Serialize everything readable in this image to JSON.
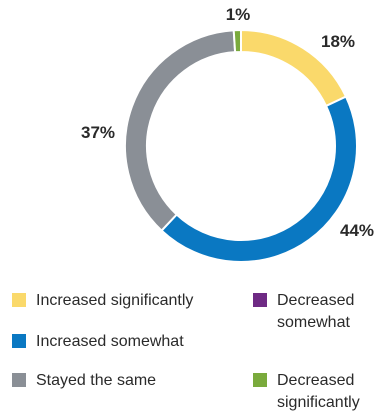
{
  "chart_data": {
    "type": "pie",
    "variant": "donut",
    "title": "",
    "categories": [
      "Increased significantly",
      "Increased somewhat",
      "Stayed the same",
      "Decreased somewhat",
      "Decreased significantly"
    ],
    "values": [
      18,
      44,
      37,
      0,
      1
    ],
    "value_labels": [
      "18%",
      "44%",
      "37%",
      "",
      "1%"
    ],
    "colors": [
      "#FAD96B",
      "#0A78C2",
      "#8A8F96",
      "#6E2A84",
      "#7AAA3C"
    ],
    "slice_order": "clockwise from top",
    "legend_placement": "bottom"
  },
  "legend": {
    "increased_significantly": "Increased significantly",
    "increased_somewhat": "Increased somewhat",
    "stayed_the_same": "Stayed the same",
    "decreased_somewhat_line1": "Decreased",
    "decreased_somewhat_line2": "somewhat",
    "decreased_significantly_line1": "Decreased",
    "decreased_significantly_line2": "significantly"
  }
}
